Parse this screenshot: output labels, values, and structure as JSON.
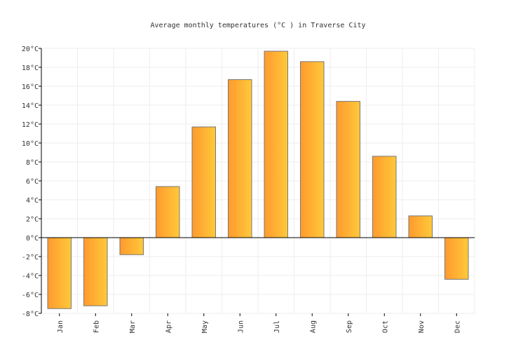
{
  "chart_data": {
    "type": "bar",
    "title": "Average monthly temperatures (°C ) in Traverse City",
    "categories": [
      "Jan",
      "Feb",
      "Mar",
      "Apr",
      "May",
      "Jun",
      "Jul",
      "Aug",
      "Sep",
      "Oct",
      "Nov",
      "Dec"
    ],
    "values": [
      -7.5,
      -7.2,
      -1.8,
      5.4,
      11.7,
      16.7,
      19.7,
      18.6,
      14.4,
      8.6,
      2.3,
      -4.4
    ],
    "unit": "°C",
    "ylim": [
      -8,
      20
    ],
    "yticks": [
      "-8°C",
      "-6°C",
      "-4°C",
      "-2°C",
      "0°C",
      "2°C",
      "4°C",
      "6°C",
      "8°C",
      "10°C",
      "12°C",
      "14°C",
      "16°C",
      "18°C",
      "20°C"
    ],
    "grid": true,
    "colors": {
      "bar_start": "#ff9a2e",
      "bar_end": "#ffc93a",
      "bar_stroke": "#777777",
      "grid": "#eeeeee"
    }
  }
}
